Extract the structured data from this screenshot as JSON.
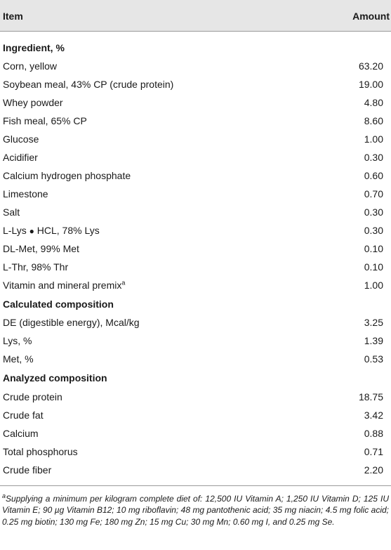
{
  "header": {
    "item": "Item",
    "amount": "Amount"
  },
  "rows": [
    {
      "label": "Ingredient, %",
      "value": ""
    },
    {
      "label": "Corn, yellow",
      "value": "63.20"
    },
    {
      "label": "Soybean meal, 43% CP (crude protein)",
      "value": "19.00"
    },
    {
      "label": "Whey powder",
      "value": "4.80"
    },
    {
      "label": "Fish meal, 65% CP",
      "value": "8.60"
    },
    {
      "label": "Glucose",
      "value": "1.00"
    },
    {
      "label": "Acidifier",
      "value": "0.30"
    },
    {
      "label": "Calcium hydrogen phosphate",
      "value": "0.60"
    },
    {
      "label": "Limestone",
      "value": "0.70"
    },
    {
      "label": "Salt",
      "value": "0.30"
    },
    {
      "label_a": "L-Lys ",
      "label_bullet": "●",
      "label_b": " HCL, 78% Lys",
      "value": "0.30"
    },
    {
      "label": "DL-Met, 99% Met",
      "value": "0.10"
    },
    {
      "label": "L-Thr, 98% Thr",
      "value": "0.10"
    },
    {
      "label": "Vitamin and mineral premix",
      "sup": "a",
      "value": "1.00"
    },
    {
      "label": "Calculated composition",
      "value": ""
    },
    {
      "label": "DE (digestible energy), Mcal/kg",
      "value": "3.25"
    },
    {
      "label": "Lys, %",
      "value": "1.39"
    },
    {
      "label": "Met, %",
      "value": "0.53"
    },
    {
      "label": "Analyzed composition",
      "value": ""
    },
    {
      "label": "Crude protein",
      "value": "18.75"
    },
    {
      "label": "Crude fat",
      "value": "3.42"
    },
    {
      "label": "Calcium",
      "value": "0.88"
    },
    {
      "label": "Total phosphorus",
      "value": "0.71"
    },
    {
      "label": "Crude fiber",
      "value": "2.20"
    }
  ],
  "footnote": {
    "marker": "a",
    "text": "Supplying a minimum per kilogram complete diet of: 12,500 IU Vitamin A; 1,250 IU Vitamin D; 125 IU Vitamin E; 90 µg Vitamin B12; 10 mg riboflavin; 48 mg pantothenic acid; 35 mg niacin; 4.5 mg folic acid; 0.25 mg biotin; 130 mg Fe; 180 mg Zn; 15 mg Cu; 30 mg Mn; 0.60 mg I, and 0.25 mg Se."
  },
  "colors": {
    "header_bg": "#e6e6e6",
    "rule": "#9a9a9a"
  }
}
